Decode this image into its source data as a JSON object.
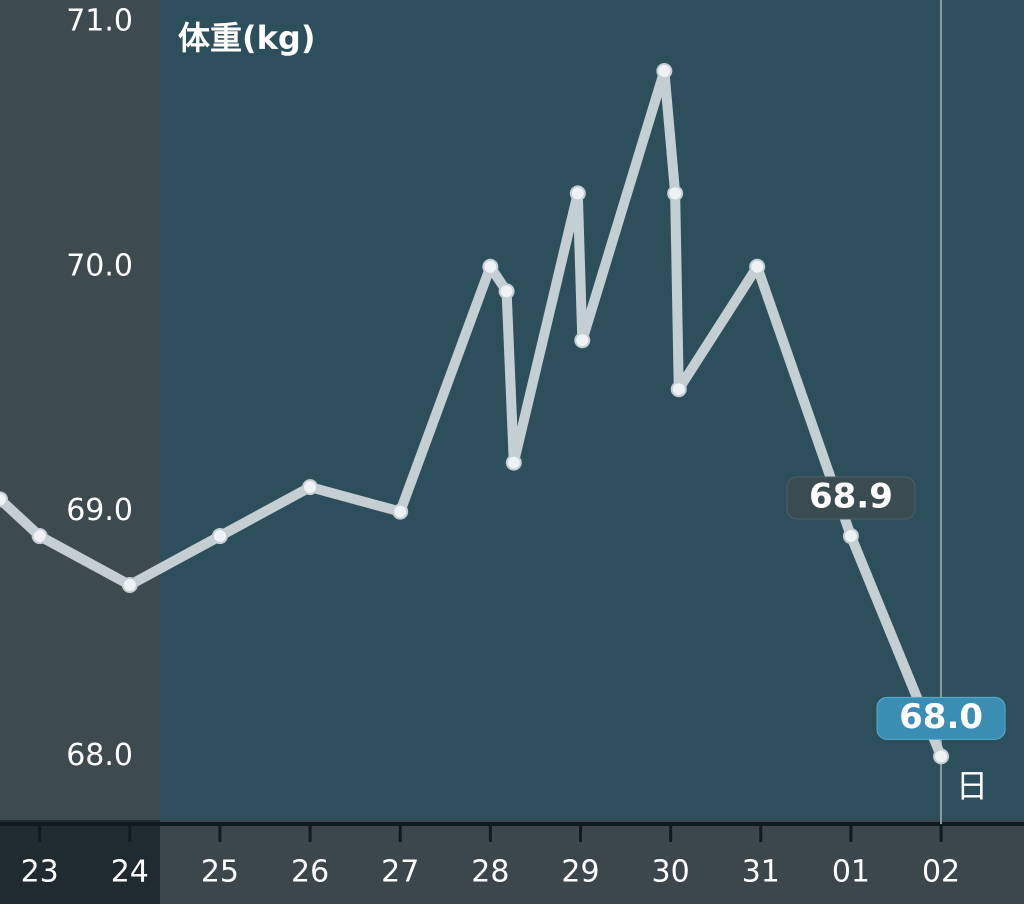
{
  "chart_data": {
    "type": "line",
    "title": "体重(kg)",
    "x_unit_label": "日",
    "x": [
      -0.44,
      0,
      1,
      2,
      3,
      4,
      5,
      5.18,
      5.26,
      5.97,
      6.02,
      6.93,
      7.05,
      7.09,
      7.96,
      9,
      10
    ],
    "series": [
      {
        "name": "体重",
        "color": "#c5ced3",
        "values": [
          69.05,
          68.9,
          68.7,
          68.9,
          69.1,
          69.0,
          70.0,
          69.9,
          69.2,
          70.3,
          69.7,
          70.8,
          70.3,
          69.5,
          70.0,
          68.9,
          68.0
        ],
        "value_labels": [
          null,
          null,
          null,
          null,
          null,
          null,
          null,
          null,
          null,
          null,
          null,
          null,
          null,
          null,
          null,
          "68.9",
          "68.0"
        ]
      }
    ],
    "xlim": [
      -0.44,
      10.92
    ],
    "ylim": [
      67.74,
      71.09
    ],
    "xticks": [
      {
        "value": 0,
        "label": "23"
      },
      {
        "value": 1,
        "label": "24"
      },
      {
        "value": 2,
        "label": "25"
      },
      {
        "value": 3,
        "label": "26"
      },
      {
        "value": 4,
        "label": "27"
      },
      {
        "value": 5,
        "label": "28"
      },
      {
        "value": 6,
        "label": "29"
      },
      {
        "value": 7,
        "label": "30"
      },
      {
        "value": 8,
        "label": "31"
      },
      {
        "value": 9,
        "label": "01"
      },
      {
        "value": 10,
        "label": "02"
      }
    ],
    "yticks": [
      {
        "value": 68,
        "label": "68.0"
      },
      {
        "value": 69,
        "label": "69.0"
      },
      {
        "value": 70,
        "label": "70.0"
      },
      {
        "value": 71,
        "label": "71.0"
      }
    ]
  }
}
